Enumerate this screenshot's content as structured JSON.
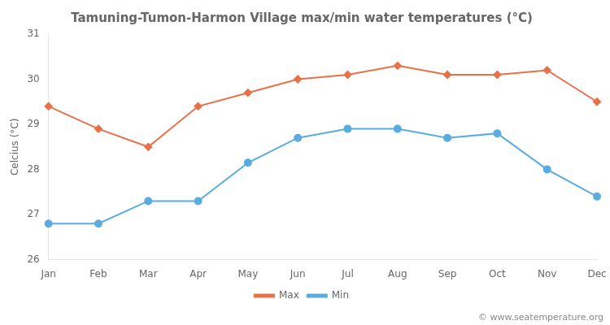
{
  "chart_data": {
    "type": "line",
    "title": "Tamuning-Tumon-Harmon Village max/min water temperatures (°C)",
    "ylabel": "Celcius (°C)",
    "categories": [
      "Jan",
      "Feb",
      "Mar",
      "Apr",
      "May",
      "Jun",
      "Jul",
      "Aug",
      "Sep",
      "Oct",
      "Nov",
      "Dec"
    ],
    "series": [
      {
        "name": "Max",
        "color": "#e8714a",
        "marker": "diamond",
        "line_style": "solid",
        "values": [
          29.4,
          28.9,
          28.5,
          29.4,
          29.7,
          30.0,
          30.1,
          30.3,
          30.1,
          30.1,
          30.2,
          29.5
        ]
      },
      {
        "name": "Min",
        "color": "#5aace0",
        "marker": "circle",
        "line_style": "solid",
        "values": [
          26.8,
          26.8,
          27.3,
          27.3,
          28.15,
          28.7,
          28.9,
          28.9,
          28.7,
          28.8,
          28.0,
          27.4
        ]
      }
    ],
    "ylim": [
      26,
      31
    ],
    "yticks": [
      26,
      27,
      28,
      29,
      30,
      31
    ],
    "grid": false,
    "legend": "bottom",
    "annotations": [
      "© www.seatemperature.org"
    ]
  }
}
